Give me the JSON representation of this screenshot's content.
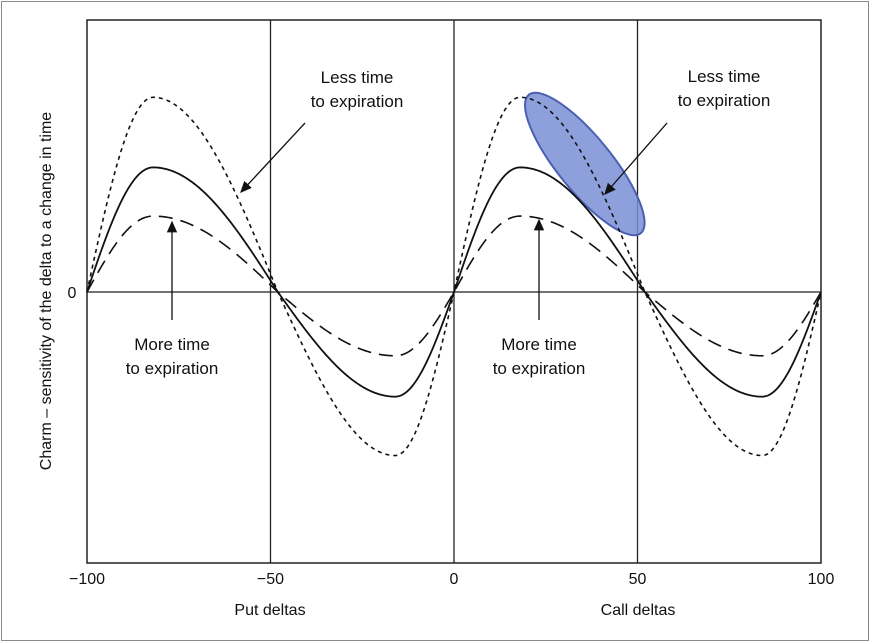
{
  "chart_data": {
    "type": "line",
    "title": "",
    "ylabel": "Charm – sensitivity of the delta to a change in time",
    "xlabels": {
      "left": "Put deltas",
      "right": "Call deltas"
    },
    "x_ticks": [
      "−100",
      "−50",
      "0",
      "50",
      "100"
    ],
    "x_tick_values": [
      -100,
      -50,
      0,
      50,
      100
    ],
    "y_ticks": [
      "0"
    ],
    "xlim": [
      -100,
      100
    ],
    "ylim": [
      -1.6,
      1.7
    ],
    "vertical_gridlines_at": [
      -50,
      0,
      50
    ],
    "horizontal_zero_line": true,
    "series": [
      {
        "style": "dotted",
        "amplitude": 1.0,
        "values_note": "less time to expiration"
      },
      {
        "style": "solid",
        "amplitude": 0.64
      },
      {
        "style": "dashed",
        "amplitude": 0.39,
        "values_note": "more time to expiration"
      }
    ],
    "series_peak_x": [
      -82,
      18
    ],
    "series_trough_x": [
      -16,
      84
    ],
    "zero_crossings": [
      -100,
      -48,
      0,
      52,
      100
    ],
    "annotations": [
      {
        "lines": [
          "Less time",
          "to expiration"
        ]
      },
      {
        "lines": [
          "More time",
          "to expiration"
        ]
      },
      {
        "lines": [
          "Less time",
          "to expiration"
        ]
      },
      {
        "lines": [
          "More time",
          "to expiration"
        ]
      }
    ],
    "highlight": {
      "shape": "ellipse",
      "color": "#7a8fd6",
      "stroke": "#4a5fb0",
      "over_x_range": [
        18,
        50
      ]
    }
  }
}
